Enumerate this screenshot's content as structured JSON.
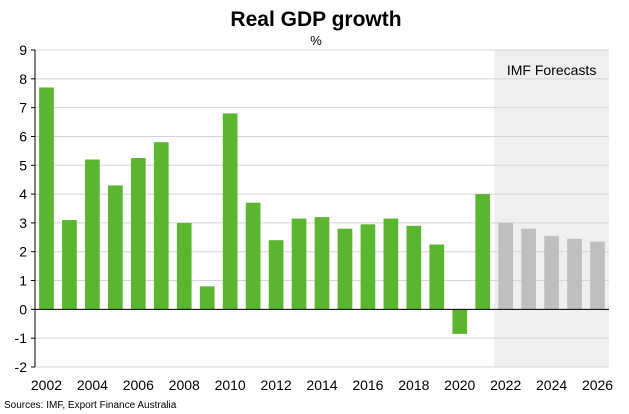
{
  "chart_data": {
    "type": "bar",
    "title": "Real GDP growth",
    "subtitle": "%",
    "categories": [
      "2002",
      "2003",
      "2004",
      "2005",
      "2006",
      "2007",
      "2008",
      "2009",
      "2010",
      "2011",
      "2012",
      "2013",
      "2014",
      "2015",
      "2016",
      "2017",
      "2018",
      "2019",
      "2020",
      "2021",
      "2022",
      "2023",
      "2024",
      "2025",
      "2026"
    ],
    "values": [
      7.7,
      3.1,
      5.2,
      4.3,
      5.25,
      5.8,
      3.0,
      0.8,
      6.8,
      3.7,
      2.4,
      3.15,
      3.2,
      2.8,
      2.95,
      3.15,
      2.9,
      2.25,
      -0.85,
      4.0,
      3.0,
      2.8,
      2.55,
      2.45,
      2.35
    ],
    "forecast_from": "2022",
    "forecast_label": "IMF Forecasts",
    "x_tick_labels": [
      "2002",
      "2004",
      "2006",
      "2008",
      "2010",
      "2012",
      "2014",
      "2016",
      "2018",
      "2020",
      "2022",
      "2024",
      "2026"
    ],
    "y_ticks": [
      -2,
      -1,
      0,
      1,
      2,
      3,
      4,
      5,
      6,
      7,
      8,
      9
    ],
    "ylim": [
      -2,
      9
    ],
    "grid": "horizontal",
    "colors": {
      "actual": "#5ab52f",
      "forecast": "#bfbfbf",
      "forecast_band": "#efefef",
      "grid": "#d4d4d4",
      "axis": "#000000"
    },
    "source": "Sources: IMF, Export Finance Australia"
  }
}
